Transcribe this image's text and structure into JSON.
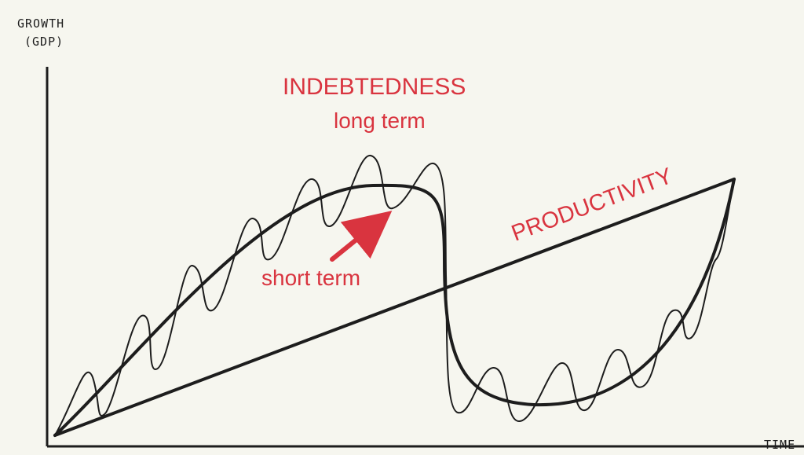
{
  "axes": {
    "y_label_line1": "GROWTH",
    "y_label_line2": "(GDP)",
    "x_label": "TIME"
  },
  "labels": {
    "indebtedness": "INDEBTEDNESS",
    "long_term": "long term",
    "short_term": "short term",
    "productivity": "PRODUCTIVITY"
  },
  "colors": {
    "background": "#f6f6ef",
    "line": "#1d1d1d",
    "accent": "#d9343f"
  }
}
